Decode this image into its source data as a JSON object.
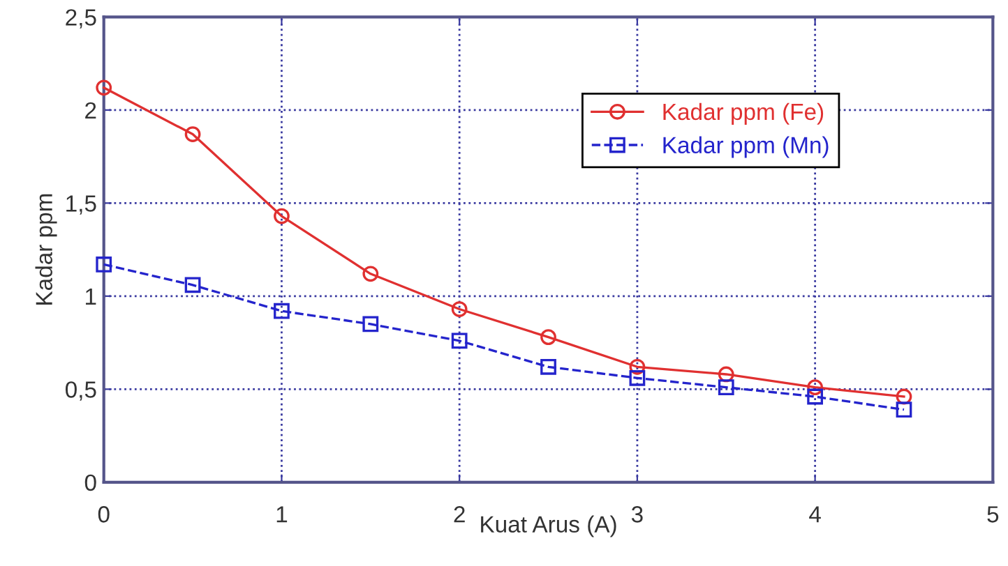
{
  "chart_data": {
    "type": "line",
    "xlabel": "Kuat Arus (A)",
    "ylabel": "Kadar ppm",
    "x": [
      0,
      0.5,
      1,
      1.5,
      2,
      2.5,
      3,
      3.5,
      4,
      4.5
    ],
    "series": [
      {
        "name": "Kadar ppm (Fe)",
        "color": "#e03030",
        "values": [
          2.12,
          1.87,
          1.43,
          1.12,
          0.93,
          0.78,
          0.62,
          0.58,
          0.51,
          0.46
        ],
        "marker": "circle",
        "line_style": "solid"
      },
      {
        "name": "Kadar ppm (Mn)",
        "color": "#2424cc",
        "values": [
          1.17,
          1.06,
          0.92,
          0.85,
          0.76,
          0.62,
          0.56,
          0.51,
          0.46,
          0.39
        ],
        "marker": "square",
        "line_style": "dashed"
      }
    ],
    "xlim": [
      0,
      5
    ],
    "xticks": [
      0,
      1,
      2,
      3,
      4,
      5
    ],
    "ylim": [
      0,
      2.5
    ],
    "yticks": [
      0,
      {
        "value": 0.5,
        "label": "0,5"
      },
      1,
      {
        "value": 1.5,
        "label": "1,5"
      },
      2,
      {
        "value": 2.5,
        "label": "2,5"
      }
    ],
    "grid": true,
    "legend": "top right"
  }
}
